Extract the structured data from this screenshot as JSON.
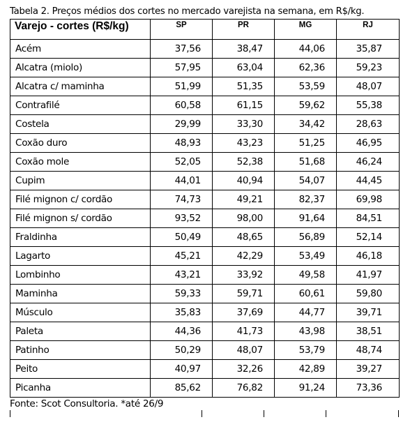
{
  "caption": "Tabela 2. Preços médios dos cortes no mercado varejista na semana, em R$/kg.",
  "table": {
    "headers": [
      "Varejo - cortes (R$/kg)",
      "SP",
      "PR",
      "MG",
      "RJ"
    ],
    "rows": [
      [
        "Acém",
        "37,56",
        "38,47",
        "44,06",
        "35,87"
      ],
      [
        "Alcatra (miolo)",
        "57,95",
        "63,04",
        "62,36",
        "59,23"
      ],
      [
        "Alcatra c/ maminha",
        "51,99",
        "51,35",
        "53,59",
        "48,07"
      ],
      [
        "Contrafilé",
        "60,58",
        "61,15",
        "59,62",
        "55,38"
      ],
      [
        "Costela",
        "29,99",
        "33,30",
        "34,42",
        "28,63"
      ],
      [
        "Coxão duro",
        "48,93",
        "43,23",
        "51,25",
        "46,95"
      ],
      [
        "Coxão mole",
        "52,05",
        "52,38",
        "51,68",
        "46,24"
      ],
      [
        "Cupim",
        "44,01",
        "40,94",
        "54,07",
        "44,45"
      ],
      [
        "Filé mignon c/ cordão",
        "74,73",
        "49,21",
        "82,37",
        "69,98"
      ],
      [
        "Filé mignon s/ cordão",
        "93,52",
        "98,00",
        "91,64",
        "84,51"
      ],
      [
        "Fraldinha",
        "50,49",
        "48,65",
        "56,89",
        "52,14"
      ],
      [
        "Lagarto",
        "45,21",
        "42,29",
        "53,49",
        "46,18"
      ],
      [
        "Lombinho",
        "43,21",
        "33,92",
        "49,58",
        "41,97"
      ],
      [
        "Maminha",
        "59,33",
        "59,71",
        "60,61",
        "59,80"
      ],
      [
        "Músculo",
        "35,83",
        "37,69",
        "44,77",
        "39,71"
      ],
      [
        "Paleta",
        "44,36",
        "41,73",
        "43,98",
        "38,51"
      ],
      [
        "Patinho",
        "50,29",
        "48,07",
        "53,79",
        "48,74"
      ],
      [
        "Peito",
        "40,97",
        "32,26",
        "42,89",
        "39,27"
      ],
      [
        "Picanha",
        "85,62",
        "76,82",
        "91,24",
        "73,36"
      ]
    ]
  },
  "footer": "Fonte: Scot Consultoria. *até 26/9"
}
